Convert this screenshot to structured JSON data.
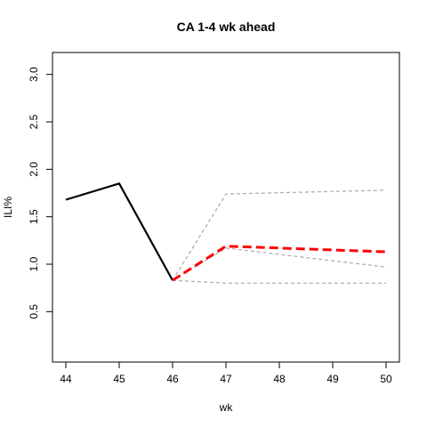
{
  "chart_data": {
    "type": "line",
    "title": "CA 1-4 wk ahead",
    "xlabel": "wk",
    "ylabel": "ILI%",
    "xlim": [
      44,
      50
    ],
    "ylim": [
      0.1,
      3.1
    ],
    "x_ticks": [
      44,
      45,
      46,
      47,
      48,
      49,
      50
    ],
    "y_ticks": [
      0.5,
      1.0,
      1.5,
      2.0,
      2.5,
      3.0
    ],
    "y_tick_labels": [
      "0.5",
      "1.0",
      "1.5",
      "2.0",
      "2.5",
      "3.0"
    ],
    "grid": false,
    "series": [
      {
        "role": "observed",
        "color": "#000000",
        "style": "solid",
        "x": [
          44,
          45,
          46
        ],
        "y": [
          1.68,
          1.85,
          0.83
        ]
      },
      {
        "role": "forecast-upper",
        "color": "#a9a9a9",
        "style": "dashed",
        "x": [
          46,
          47,
          50
        ],
        "y": [
          0.83,
          1.74,
          1.78
        ]
      },
      {
        "role": "forecast-mid",
        "color": "#a9a9a9",
        "style": "dashed",
        "x": [
          46,
          47,
          50
        ],
        "y": [
          0.83,
          1.17,
          0.97
        ]
      },
      {
        "role": "forecast-lower",
        "color": "#a9a9a9",
        "style": "dashed",
        "x": [
          46,
          47,
          50
        ],
        "y": [
          0.83,
          0.8,
          0.8
        ]
      },
      {
        "role": "forecast-point",
        "color": "#ff0000",
        "style": "dashed-thick",
        "x": [
          46,
          47,
          50
        ],
        "y": [
          0.83,
          1.19,
          1.13
        ]
      }
    ]
  }
}
